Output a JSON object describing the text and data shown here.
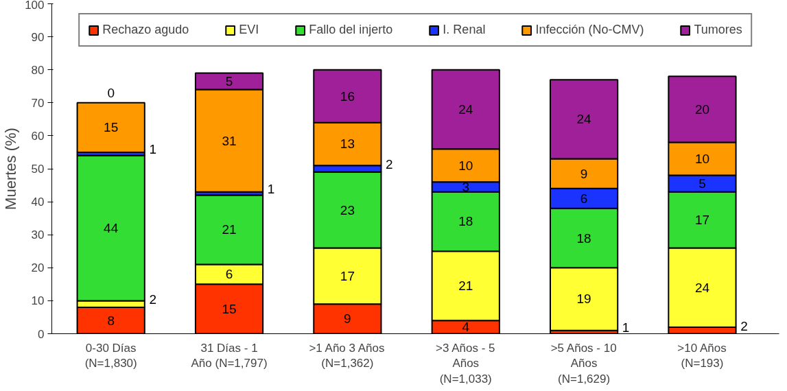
{
  "chart_data": {
    "type": "bar",
    "stacked": true,
    "ylabel": "Muertes (%)",
    "categories": [
      "0-30 Días (N=1,830)",
      "31 Días - 1 Año (N=1,797)",
      ">1 Año 3 Años (N=1,362)",
      ">3 Años - 5 Años (N=1,033)",
      ">5 Años - 10 Años (N=1,629)",
      ">10 Años (N=193)"
    ],
    "series": [
      {
        "name": "Rechazo agudo",
        "color": "#ff3300",
        "values": [
          8,
          15,
          9,
          4,
          1,
          2
        ]
      },
      {
        "name": "EVI",
        "color": "#ffff33",
        "values": [
          2,
          6,
          17,
          21,
          19,
          24
        ]
      },
      {
        "name": "Fallo del injerto",
        "color": "#33dd33",
        "values": [
          44,
          21,
          23,
          18,
          18,
          17
        ]
      },
      {
        "name": "I. Renal",
        "color": "#1a33ff",
        "values": [
          1,
          1,
          2,
          3,
          6,
          5
        ]
      },
      {
        "name": "Infección (No-CMV)",
        "color": "#ff9900",
        "values": [
          15,
          31,
          13,
          10,
          9,
          10
        ]
      },
      {
        "name": "Tumores",
        "color": "#a0209a",
        "values": [
          0,
          5,
          16,
          24,
          24,
          20
        ]
      }
    ],
    "ylim": [
      0,
      100
    ],
    "yticks": [
      0,
      10,
      20,
      30,
      40,
      50,
      60,
      70,
      80,
      90,
      100
    ],
    "data_labels": true,
    "legend": "top",
    "grid": false
  }
}
